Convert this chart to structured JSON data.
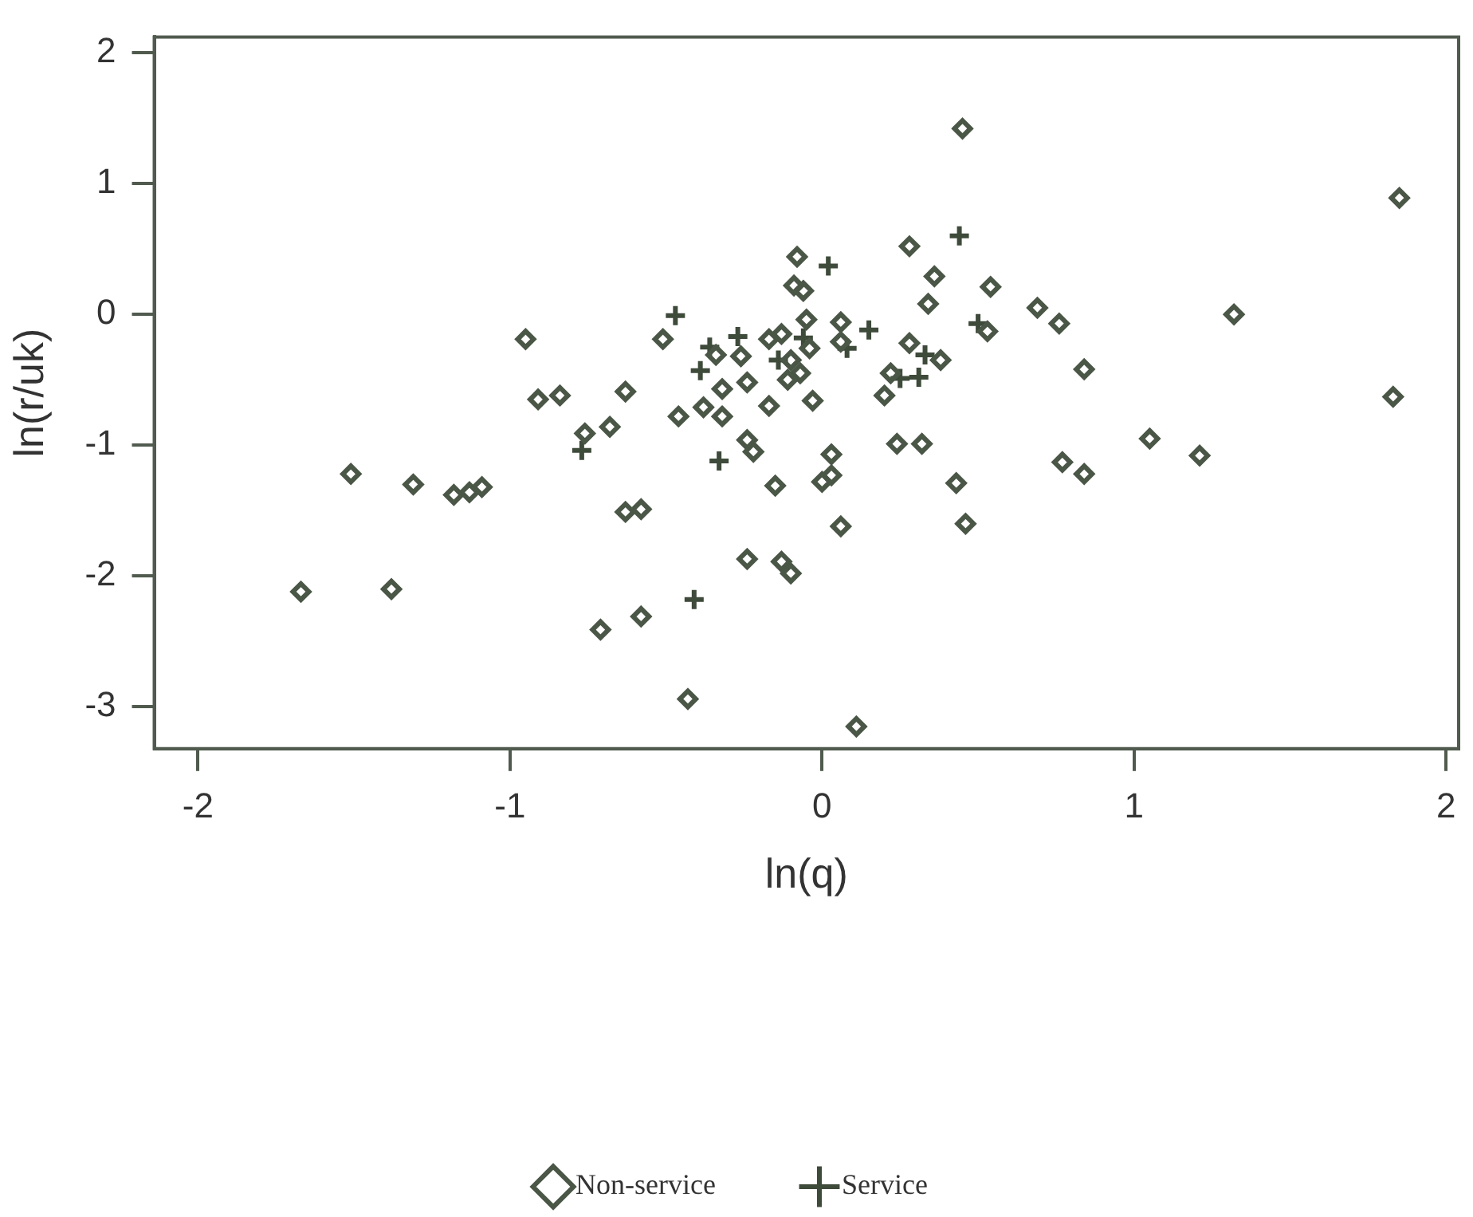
{
  "chart_data": {
    "type": "scatter",
    "xlabel": "ln(q)",
    "ylabel": "ln(r/uk)",
    "xlim": [
      -2.14,
      2.04
    ],
    "ylim": [
      -3.32,
      2.12
    ],
    "xticks": [
      -2,
      -1,
      0,
      1,
      2
    ],
    "yticks": [
      -3,
      -2,
      -1,
      0,
      1,
      2
    ],
    "grid": false,
    "legend": "bottom",
    "series": [
      {
        "name": "Non-service",
        "color": "#4a5646",
        "marker": "diamond",
        "x": [
          0.45,
          0.28,
          -0.08,
          0.36,
          -0.09,
          -0.06,
          0.54,
          0.34,
          0.69,
          0.76,
          -0.05,
          0.06,
          0.53,
          -0.51,
          -0.34,
          -0.26,
          -0.17,
          -0.13,
          -0.04,
          0.06,
          0.28,
          0.38,
          -0.1,
          -0.07,
          -0.11,
          -0.32,
          -0.24,
          0.22,
          0.2,
          -0.03,
          -0.17,
          -0.38,
          -0.46,
          -0.32,
          -0.63,
          -0.68,
          -0.95,
          -0.91,
          -0.84,
          -0.76,
          -1.51,
          -1.31,
          -1.18,
          -1.13,
          -1.09,
          -0.63,
          -0.58,
          -1.67,
          -1.38,
          -0.71,
          -0.58,
          -0.24,
          -0.22,
          0.03,
          -0.15,
          0.03,
          0.0,
          0.24,
          0.32,
          0.43,
          0.06,
          0.46,
          -0.24,
          -0.13,
          -0.1,
          -0.43,
          0.11,
          0.77,
          1.85,
          1.32,
          0.84,
          1.83,
          1.05,
          1.21,
          0.84
        ],
        "values": [
          1.42,
          0.52,
          0.44,
          0.29,
          0.22,
          0.18,
          0.21,
          0.08,
          0.05,
          -0.07,
          -0.04,
          -0.06,
          -0.13,
          -0.19,
          -0.31,
          -0.32,
          -0.19,
          -0.15,
          -0.26,
          -0.21,
          -0.22,
          -0.35,
          -0.35,
          -0.45,
          -0.5,
          -0.57,
          -0.52,
          -0.45,
          -0.62,
          -0.66,
          -0.7,
          -0.71,
          -0.78,
          -0.78,
          -0.59,
          -0.86,
          -0.19,
          -0.65,
          -0.62,
          -0.91,
          -1.22,
          -1.3,
          -1.38,
          -1.36,
          -1.32,
          -1.51,
          -1.49,
          -2.12,
          -2.1,
          -2.41,
          -2.31,
          -0.96,
          -1.05,
          -1.07,
          -1.31,
          -1.23,
          -1.28,
          -0.99,
          -0.99,
          -1.29,
          -1.62,
          -1.6,
          -1.87,
          -1.89,
          -1.98,
          -2.94,
          -3.15,
          -1.13,
          0.89,
          0.0,
          -0.42,
          -0.63,
          -0.95,
          -1.08,
          -1.22
        ]
      },
      {
        "name": "Service",
        "color": "#3e4a3a",
        "marker": "cross",
        "x": [
          0.44,
          0.02,
          -0.47,
          0.15,
          0.5,
          -0.36,
          -0.27,
          -0.06,
          0.08,
          0.33,
          -0.39,
          -0.14,
          0.25,
          0.31,
          -0.77,
          -0.33,
          -0.41
        ],
        "values": [
          0.6,
          0.37,
          -0.01,
          -0.12,
          -0.07,
          -0.25,
          -0.17,
          -0.18,
          -0.26,
          -0.31,
          -0.43,
          -0.35,
          -0.49,
          -0.48,
          -1.04,
          -1.12,
          -2.18
        ]
      }
    ]
  }
}
